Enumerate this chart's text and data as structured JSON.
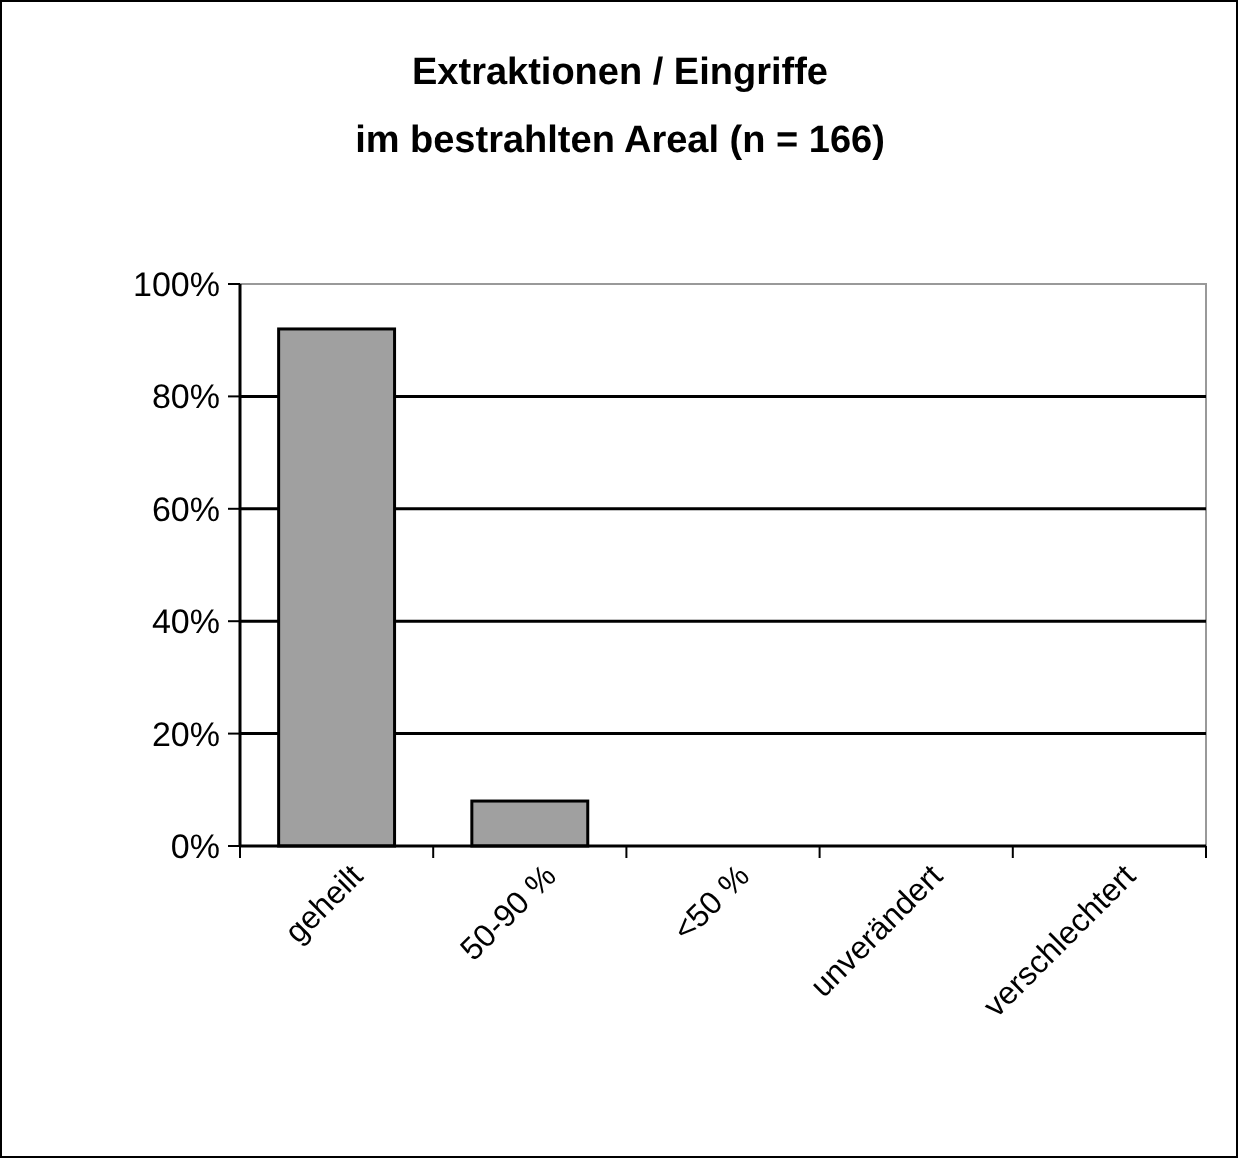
{
  "chart_data": {
    "type": "bar",
    "title": "Extraktionen / Eingriffe\nim bestrahlten Areal (n = 166)",
    "categories": [
      "geheilt",
      "50-90 %",
      "<50 %",
      "unverändert",
      "verschlechtert"
    ],
    "values": [
      92,
      8,
      0,
      0,
      0
    ],
    "color": "#a0a0a0",
    "ylim": [
      0,
      100
    ],
    "yticks": [
      {
        "value": 0,
        "label": "0%"
      },
      {
        "value": 20,
        "label": "20%"
      },
      {
        "value": 40,
        "label": "40%"
      },
      {
        "value": 60,
        "label": "60%"
      },
      {
        "value": 80,
        "label": "80%"
      },
      {
        "value": 100,
        "label": "100%"
      }
    ],
    "grid": "y"
  }
}
